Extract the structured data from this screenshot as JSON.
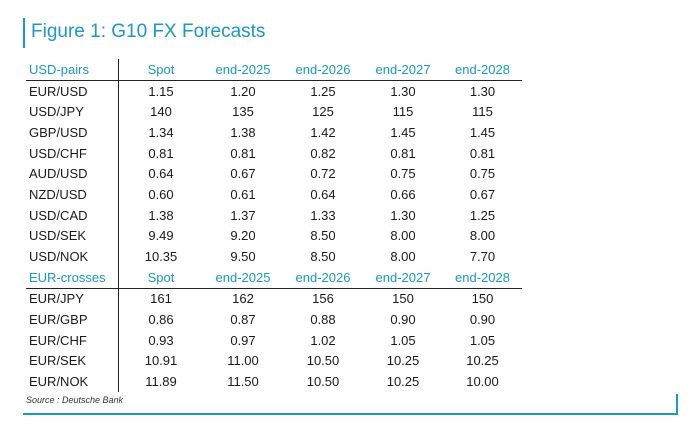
{
  "title": "Figure 1: G10 FX Forecasts",
  "source": "Source : Deutsche Bank",
  "accent_color": "#1a98c8",
  "sections": [
    {
      "header": [
        "USD-pairs",
        "Spot",
        "end-2025",
        "end-2026",
        "end-2027",
        "end-2028"
      ],
      "rows": [
        [
          "EUR/USD",
          "1.15",
          "1.20",
          "1.25",
          "1.30",
          "1.30"
        ],
        [
          "USD/JPY",
          "140",
          "135",
          "125",
          "115",
          "115"
        ],
        [
          "GBP/USD",
          "1.34",
          "1.38",
          "1.42",
          "1.45",
          "1.45"
        ],
        [
          "USD/CHF",
          "0.81",
          "0.81",
          "0.82",
          "0.81",
          "0.81"
        ],
        [
          "AUD/USD",
          "0.64",
          "0.67",
          "0.72",
          "0.75",
          "0.75"
        ],
        [
          "NZD/USD",
          "0.60",
          "0.61",
          "0.64",
          "0.66",
          "0.67"
        ],
        [
          "USD/CAD",
          "1.38",
          "1.37",
          "1.33",
          "1.30",
          "1.25"
        ],
        [
          "USD/SEK",
          "9.49",
          "9.20",
          "8.50",
          "8.00",
          "8.00"
        ],
        [
          "USD/NOK",
          "10.35",
          "9.50",
          "8.50",
          "8.00",
          "7.70"
        ]
      ]
    },
    {
      "header": [
        "EUR-crosses",
        "Spot",
        "end-2025",
        "end-2026",
        "end-2027",
        "end-2028"
      ],
      "rows": [
        [
          "EUR/JPY",
          "161",
          "162",
          "156",
          "150",
          "150"
        ],
        [
          "EUR/GBP",
          "0.86",
          "0.87",
          "0.88",
          "0.90",
          "0.90"
        ],
        [
          "EUR/CHF",
          "0.93",
          "0.97",
          "1.02",
          "1.05",
          "1.05"
        ],
        [
          "EUR/SEK",
          "10.91",
          "11.00",
          "10.50",
          "10.25",
          "10.25"
        ],
        [
          "EUR/NOK",
          "11.89",
          "11.50",
          "10.50",
          "10.25",
          "10.00"
        ]
      ]
    }
  ]
}
